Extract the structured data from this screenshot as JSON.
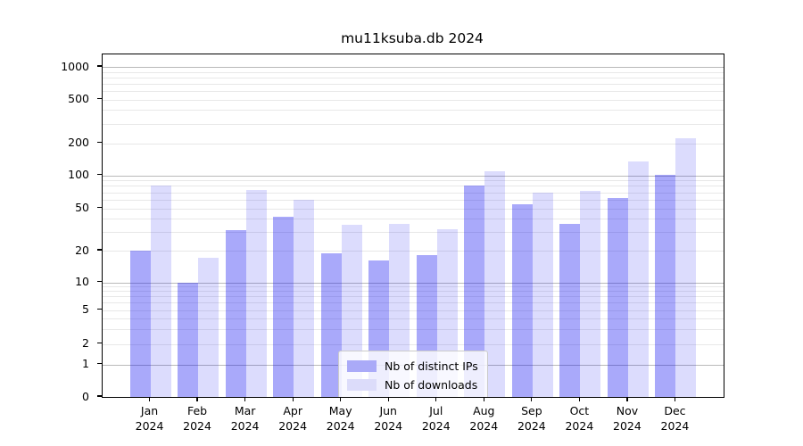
{
  "chart_data": {
    "type": "bar",
    "title": "mu11ksuba.db 2024",
    "categories": [
      "Jan",
      "Feb",
      "Mar",
      "Apr",
      "May",
      "Jun",
      "Jul",
      "Aug",
      "Sep",
      "Oct",
      "Nov",
      "Dec"
    ],
    "x_tick_year": "2024",
    "series": [
      {
        "name": "Nb of distinct IPs",
        "color": "#aaaaf8",
        "fill": "rgba(18,18,240,0.36)",
        "values": [
          20,
          10,
          31,
          42,
          19,
          16,
          18,
          80,
          54,
          36,
          62,
          101
        ]
      },
      {
        "name": "Nb of downloads",
        "color": "#dcdcfa",
        "fill": "rgba(18,18,240,0.15)",
        "values": [
          80,
          17,
          74,
          60,
          35,
          36,
          32,
          110,
          70,
          72,
          135,
          220
        ]
      }
    ],
    "yticks": [
      0,
      1,
      2,
      5,
      10,
      20,
      50,
      100,
      200,
      500,
      1000
    ],
    "scale": "symlog",
    "ylim": [
      0,
      1200
    ],
    "grid": true,
    "legend_position": "lower center",
    "colors": {
      "background": "#ffffff",
      "axis": "#000000",
      "major_grid": "#b9b9b9",
      "minor_grid": "#e8e8e8"
    }
  }
}
